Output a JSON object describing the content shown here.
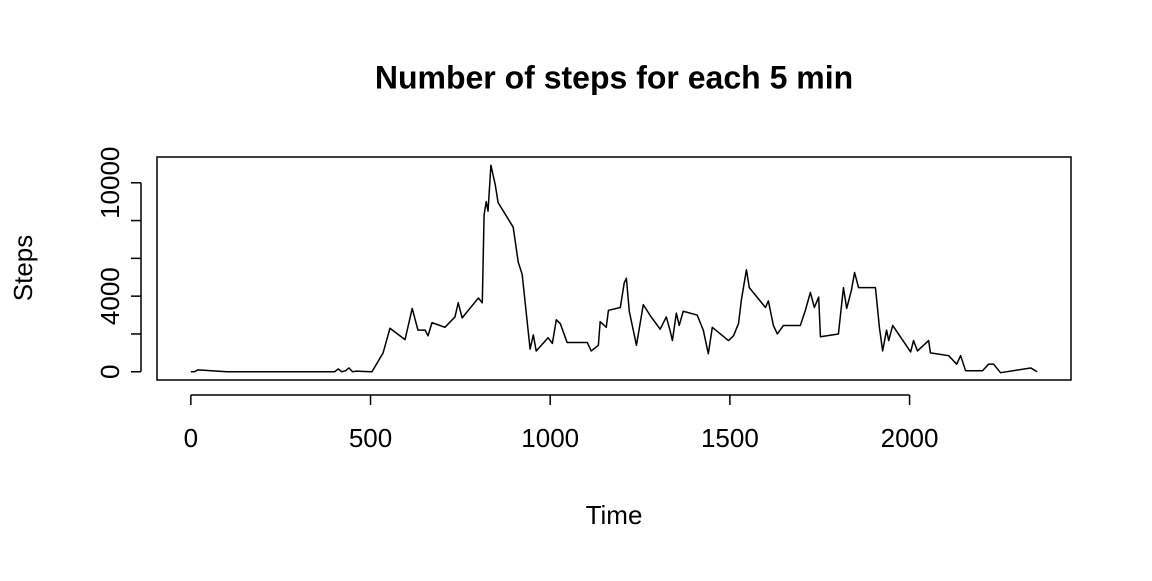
{
  "chart_data": {
    "type": "line",
    "title": "Number of steps for each 5 min",
    "x_label": "Time",
    "y_label": "Steps",
    "color": "#000000",
    "x": [
      0,
      10,
      20,
      100,
      200,
      300,
      400,
      410,
      420,
      430,
      440,
      450,
      460,
      500,
      504,
      535,
      554,
      596,
      616,
      632,
      652,
      660,
      671,
      707,
      735,
      744,
      755,
      800,
      811,
      816,
      822,
      827,
      835,
      847,
      855,
      897,
      911,
      922,
      944,
      953,
      961,
      994,
      1006,
      1017,
      1028,
      1047,
      1103,
      1114,
      1134,
      1139,
      1156,
      1162,
      1195,
      1206,
      1212,
      1220,
      1240,
      1259,
      1279,
      1306,
      1323,
      1334,
      1340,
      1351,
      1359,
      1370,
      1409,
      1426,
      1440,
      1451,
      1496,
      1510,
      1524,
      1532,
      1546,
      1554,
      1599,
      1607,
      1621,
      1632,
      1649,
      1696,
      1710,
      1724,
      1735,
      1747,
      1752,
      1802,
      1816,
      1825,
      1838,
      1847,
      1858,
      1905,
      1916,
      1925,
      1936,
      1942,
      1953,
      2003,
      2011,
      2022,
      2053,
      2058,
      2109,
      2131,
      2142,
      2156,
      2203,
      2220,
      2234,
      2253,
      2337,
      2355
    ],
    "values": [
      0,
      0,
      100,
      0,
      0,
      0,
      0,
      150,
      0,
      50,
      200,
      0,
      30,
      0,
      0,
      1000,
      2300,
      1700,
      3350,
      2200,
      2200,
      1900,
      2600,
      2350,
      2900,
      3650,
      2850,
      3900,
      3650,
      8300,
      9000,
      8500,
      10927,
      9900,
      8950,
      7650,
      5800,
      5150,
      1200,
      1950,
      1100,
      1800,
      1500,
      2750,
      2550,
      1550,
      1550,
      1100,
      1400,
      2650,
      2350,
      3250,
      3400,
      4700,
      4950,
      3200,
      1400,
      3550,
      2950,
      2250,
      2900,
      2150,
      1650,
      3100,
      2450,
      3200,
      3000,
      2200,
      950,
      2350,
      1650,
      1900,
      2550,
      3800,
      5400,
      4450,
      3400,
      3750,
      2450,
      2000,
      2450,
      2450,
      3250,
      4200,
      3400,
      3950,
      1850,
      2000,
      4450,
      3350,
      4300,
      5250,
      4450,
      4450,
      2350,
      1100,
      2200,
      1650,
      2450,
      1050,
      1650,
      1100,
      1650,
      1000,
      850,
      400,
      850,
      50,
      50,
      400,
      400,
      -50,
      200,
      0
    ],
    "xlim": [
      -94.2,
      2449.2
    ],
    "xticks": [
      0,
      500,
      1000,
      1500,
      2000
    ],
    "ylim": [
      -437,
      11364
    ],
    "yticks": [
      0,
      {
        "value": 2000,
        "label": null
      },
      4000,
      {
        "value": 6000,
        "label": null
      },
      {
        "value": 8000,
        "label": null
      },
      10000
    ]
  }
}
